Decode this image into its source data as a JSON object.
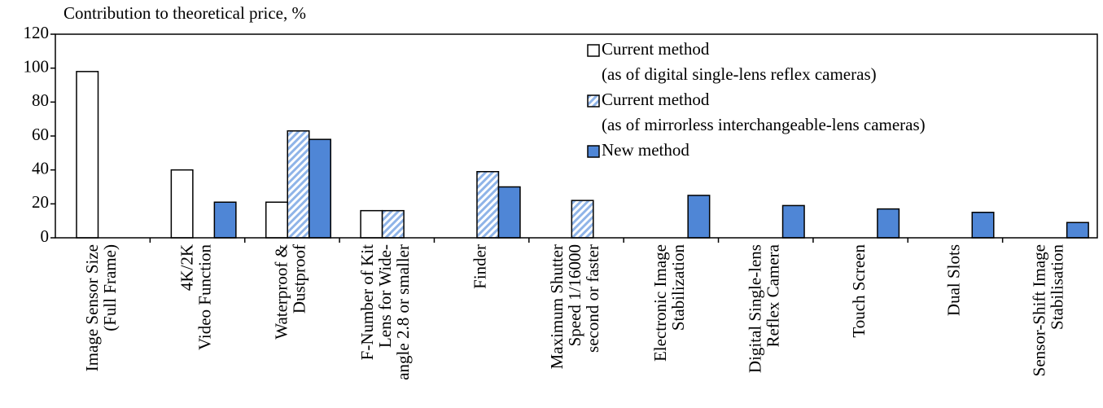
{
  "chart_data": {
    "type": "bar",
    "title": "Contribution to theoretical price, %",
    "categories": [
      [
        "Image Sensor Size",
        "(Full Frame)"
      ],
      [
        "4K/2K",
        "Video Function"
      ],
      [
        "Waterproof &",
        "Dustproof"
      ],
      [
        "F-Number of Kit",
        "Lens for Wide-",
        "angle 2.8 or smaller"
      ],
      [
        "Finder"
      ],
      [
        "Maximum Shutter",
        "Speed 1/16000",
        "second or faster"
      ],
      [
        "Electronic Image",
        "Stabilization"
      ],
      [
        "Digital Single-lens",
        "Reflex Camera"
      ],
      [
        "Touch Screen"
      ],
      [
        "Dual Slots"
      ],
      [
        "Sensor-Shift Image",
        "Stabilisation"
      ]
    ],
    "series": [
      {
        "name": [
          "Current method",
          "(as of digital single-lens reflex cameras)"
        ],
        "color": "#ffffff",
        "pattern": "solid",
        "values": [
          98,
          40,
          21,
          16,
          null,
          null,
          null,
          null,
          null,
          null,
          null
        ]
      },
      {
        "name": [
          "Current method",
          "(as of mirrorless interchangeable-lens cameras)"
        ],
        "color": "#8fb4e8",
        "pattern": "hatch",
        "values": [
          null,
          null,
          63,
          16,
          39,
          22,
          null,
          null,
          null,
          null,
          null
        ]
      },
      {
        "name": [
          "New method"
        ],
        "color": "#4f86d6",
        "pattern": "solid",
        "values": [
          null,
          21,
          58,
          null,
          30,
          null,
          25,
          19,
          17,
          15,
          9
        ]
      }
    ],
    "ylim": [
      0,
      120
    ],
    "yticks": [
      0,
      20,
      40,
      60,
      80,
      100,
      120
    ],
    "grid": false,
    "legend": "top-right"
  }
}
